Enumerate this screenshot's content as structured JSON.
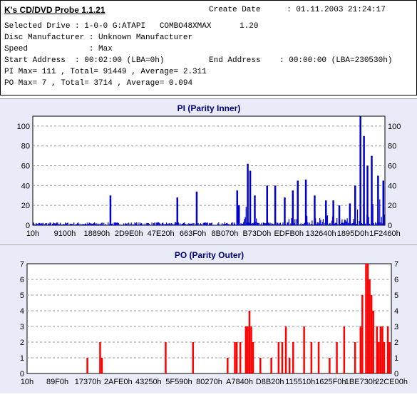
{
  "header": {
    "app_title": "K's CD/DVD Probe 1.1.21",
    "create_date_label": "Create Date",
    "create_date_value": ":  01.11.2003 21:24:17",
    "lines": [
      "Selected Drive : 1-0-0 G:ATAPI   COMBO48XMAX      1.20",
      "Disc Manufacturer : Unknown Manufacturer",
      "Speed             : Max",
      "Start Address  : 00:02:00 (LBA=0h)",
      "PI Max= 111 , Total= 91449 , Average= 2.311",
      "PO Max= 7 , Total= 3714 , Average= 0.094"
    ],
    "end_address": "End Address    : 00:00:00 (LBA=230530h)"
  },
  "chart_data": [
    {
      "type": "bar",
      "title": "PI (Parity Inner)",
      "color": "#0000cc",
      "ylim": [
        0,
        110
      ],
      "yticks": [
        0,
        20,
        40,
        60,
        80,
        100
      ],
      "xticks": [
        "10h",
        "9100h",
        "18890h",
        "2D9E0h",
        "47E20h",
        "663F0h",
        "8B070h",
        "B73D0h",
        "EDFB0h",
        "132640h",
        "1895D0h",
        "1F2460h"
      ],
      "x_unit": "relative position along disc (0-1)",
      "baseline": 2,
      "peaks": [
        [
          0.22,
          30
        ],
        [
          0.41,
          28
        ],
        [
          0.465,
          34
        ],
        [
          0.58,
          35
        ],
        [
          0.585,
          20
        ],
        [
          0.61,
          62
        ],
        [
          0.617,
          55
        ],
        [
          0.63,
          30
        ],
        [
          0.665,
          40
        ],
        [
          0.688,
          40
        ],
        [
          0.715,
          28
        ],
        [
          0.738,
          35
        ],
        [
          0.752,
          45
        ],
        [
          0.775,
          46
        ],
        [
          0.8,
          30
        ],
        [
          0.832,
          25
        ],
        [
          0.853,
          25
        ],
        [
          0.87,
          20
        ],
        [
          0.9,
          22
        ],
        [
          0.915,
          40
        ],
        [
          0.93,
          111
        ],
        [
          0.94,
          90
        ],
        [
          0.95,
          60
        ],
        [
          0.962,
          70
        ],
        [
          0.98,
          50
        ],
        [
          0.995,
          45
        ]
      ],
      "dense_ranges": [
        [
          0.6,
          0.64,
          20
        ],
        [
          0.72,
          0.86,
          10
        ],
        [
          0.86,
          0.92,
          10
        ],
        [
          0.92,
          1.0,
          35
        ]
      ]
    },
    {
      "type": "bar",
      "title": "PO (Parity Outer)",
      "color": "#ff0000",
      "ylim": [
        0,
        7
      ],
      "yticks": [
        0,
        1,
        2,
        3,
        4,
        5,
        6,
        7
      ],
      "xticks": [
        "10h",
        "89F0h",
        "17370h",
        "2AFE0h",
        "43250h",
        "5F590h",
        "80270h",
        "A7840h",
        "D8B20h",
        "115510h",
        "1625F0h",
        "1BE730h",
        "22CE00h"
      ],
      "x_unit": "relative position along disc (0-1)",
      "peaks": [
        [
          0.165,
          1
        ],
        [
          0.2,
          2
        ],
        [
          0.205,
          1
        ],
        [
          0.38,
          2
        ],
        [
          0.455,
          2
        ],
        [
          0.55,
          1
        ],
        [
          0.57,
          2
        ],
        [
          0.575,
          2
        ],
        [
          0.585,
          2
        ],
        [
          0.6,
          3
        ],
        [
          0.605,
          3
        ],
        [
          0.61,
          4
        ],
        [
          0.615,
          3
        ],
        [
          0.62,
          2
        ],
        [
          0.64,
          1
        ],
        [
          0.67,
          1
        ],
        [
          0.69,
          2
        ],
        [
          0.7,
          2
        ],
        [
          0.71,
          3
        ],
        [
          0.72,
          1
        ],
        [
          0.73,
          2
        ],
        [
          0.76,
          3
        ],
        [
          0.78,
          2
        ],
        [
          0.8,
          2
        ],
        [
          0.83,
          1
        ],
        [
          0.85,
          2
        ],
        [
          0.87,
          3
        ],
        [
          0.9,
          2
        ],
        [
          0.915,
          3
        ],
        [
          0.92,
          5
        ],
        [
          0.93,
          7
        ],
        [
          0.935,
          7
        ],
        [
          0.94,
          6
        ],
        [
          0.945,
          5
        ],
        [
          0.95,
          4
        ],
        [
          0.96,
          3
        ],
        [
          0.965,
          2
        ],
        [
          0.97,
          3
        ],
        [
          0.975,
          3
        ],
        [
          0.98,
          2
        ],
        [
          0.99,
          3
        ],
        [
          0.995,
          2
        ]
      ]
    }
  ]
}
